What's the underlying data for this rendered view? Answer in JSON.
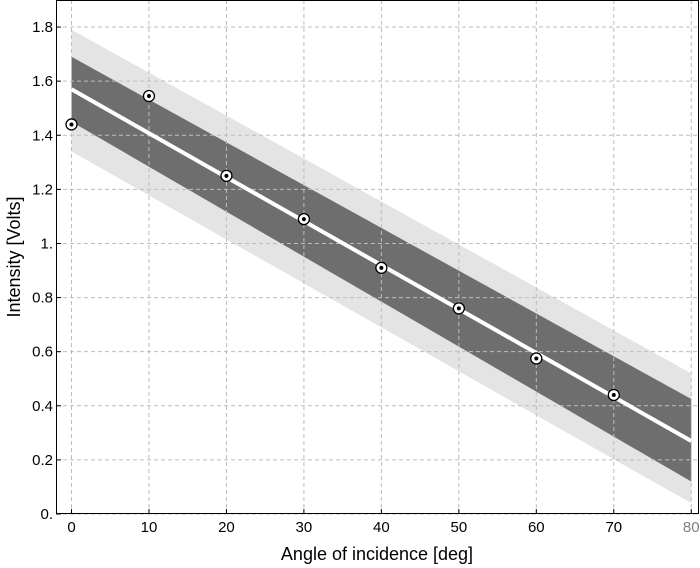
{
  "chart_data": {
    "type": "scatter",
    "title": "",
    "xlabel": "Angle of incidence [deg]",
    "ylabel": "Intensity [Volts]",
    "xlim": [
      -2,
      81
    ],
    "ylim": [
      0,
      1.9
    ],
    "xticks": [
      0,
      10,
      20,
      30,
      40,
      50,
      60,
      70,
      80
    ],
    "xtick_labels": [
      "0",
      "10",
      "20",
      "30",
      "40",
      "50",
      "60",
      "70",
      "80"
    ],
    "yticks": [
      0,
      0.2,
      0.4,
      0.6,
      0.8,
      1.0,
      1.2,
      1.4,
      1.6,
      1.8
    ],
    "ytick_labels": [
      "0.",
      "0.2",
      "0.4",
      "0.6",
      "0.8",
      "1.",
      "1.2",
      "1.4",
      "1.6",
      "1.8"
    ],
    "grid": true,
    "legend": "none",
    "points": {
      "x": [
        0,
        10,
        20,
        30,
        40,
        50,
        60,
        70
      ],
      "y": [
        1.44,
        1.545,
        1.25,
        1.09,
        0.91,
        0.76,
        0.575,
        0.44
      ]
    },
    "fit_line": {
      "x": [
        0,
        80
      ],
      "y": [
        1.57,
        0.27
      ]
    },
    "confidence_band": {
      "x": [
        0,
        80
      ],
      "lower": [
        1.45,
        0.12
      ],
      "upper": [
        1.69,
        0.425
      ]
    },
    "prediction_band": {
      "x": [
        0,
        80
      ],
      "lower": [
        1.34,
        0.04
      ],
      "upper": [
        1.79,
        0.52
      ]
    },
    "colors": {
      "prediction_band": "#e4e4e4",
      "confidence_band": "#6e6e6e",
      "fit_line": "#ffffff",
      "grid": "#bdbdbd",
      "marker": "#000000",
      "last_tick_label": "#808080"
    }
  }
}
